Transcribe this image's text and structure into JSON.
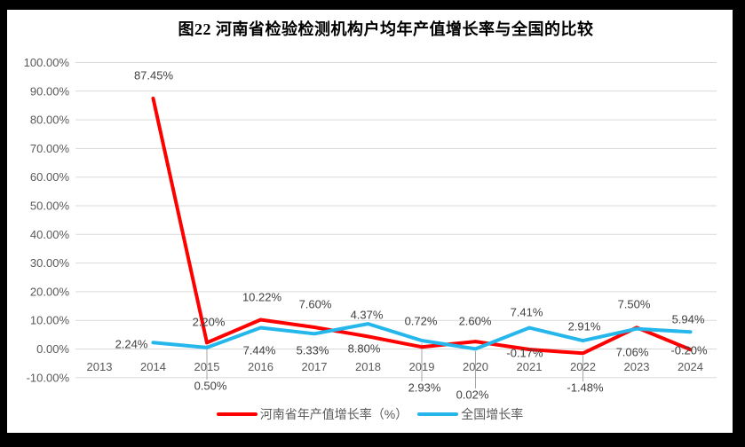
{
  "window": {
    "outer_background": "#000000",
    "inner_background": "#ffffff"
  },
  "chart_data": {
    "type": "line",
    "title": "图22  河南省检验检测机构户均年产值增长率与全国的比较",
    "categories": [
      "2013",
      "2014",
      "2015",
      "2016",
      "2017",
      "2018",
      "2019",
      "2020",
      "2021",
      "2022",
      "2023",
      "2024"
    ],
    "series": [
      {
        "name": "河南省年产值增长率（%）",
        "color": "#FF0000",
        "values": [
          null,
          87.45,
          2.2,
          10.22,
          7.6,
          4.37,
          0.72,
          2.6,
          -0.17,
          -1.48,
          7.5,
          -0.2
        ],
        "labels": [
          null,
          "87.45%",
          "2.20%",
          "10.22%",
          "7.60%",
          "4.37%",
          "0.72%",
          "2.60%",
          "-0.17%",
          "-1.48%",
          "7.50%",
          "-0.20%"
        ]
      },
      {
        "name": "全国增长率",
        "color": "#25B7EC",
        "values": [
          null,
          2.24,
          0.5,
          7.44,
          5.33,
          8.8,
          2.93,
          0.02,
          7.41,
          2.91,
          7.06,
          5.94
        ],
        "labels": [
          null,
          "2.24%",
          "0.50%",
          "7.44%",
          "5.33%",
          "8.80%",
          "2.93%",
          "0.02%",
          "7.41%",
          "2.91%",
          "7.06%",
          "5.94%"
        ]
      }
    ],
    "y_ticks": [
      "100.00%",
      "90.00%",
      "80.00%",
      "70.00%",
      "60.00%",
      "50.00%",
      "40.00%",
      "30.00%",
      "20.00%",
      "10.00%",
      "0.00%",
      "-10.00%"
    ],
    "ylim": [
      -10,
      100
    ],
    "y_tick_step": 10,
    "grid": true,
    "legend_position": "bottom"
  },
  "colors": {
    "gridline": "#D9D9D9",
    "leader_line": "#A6A6A6",
    "axis_text": "#595959",
    "data_label_text": "#404040",
    "title_text": "#000000"
  }
}
